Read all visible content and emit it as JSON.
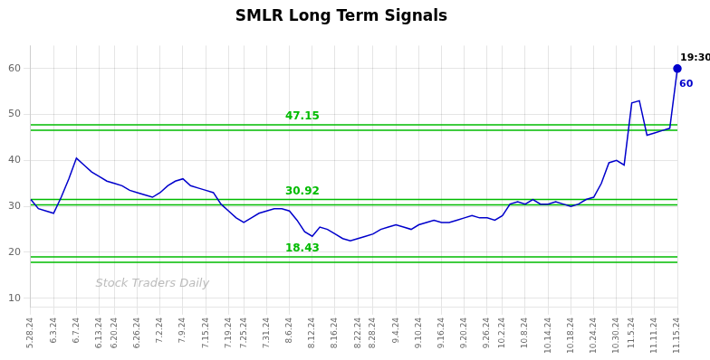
{
  "chart_data": {
    "type": "line",
    "title": "SMLR Long Term Signals",
    "categories": [
      "5.28.24",
      null,
      null,
      "6.3.24",
      null,
      null,
      "6.7.24",
      null,
      null,
      "6.13.24",
      null,
      "6.20.24",
      null,
      null,
      "6.26.24",
      null,
      null,
      "7.2.24",
      null,
      null,
      "7.9.24",
      null,
      null,
      "7.15.24",
      null,
      null,
      "7.19.24",
      null,
      "7.25.24",
      null,
      null,
      "7.31.24",
      null,
      null,
      "8.6.24",
      null,
      null,
      "8.12.24",
      null,
      null,
      "8.16.24",
      null,
      null,
      "8.22.24",
      null,
      "8.28.24",
      null,
      null,
      "9.4.24",
      null,
      null,
      "9.10.24",
      null,
      null,
      "9.16.24",
      null,
      null,
      "9.20.24",
      null,
      null,
      "9.26.24",
      null,
      "10.2.24",
      null,
      null,
      "10.8.24",
      null,
      null,
      "10.14.24",
      null,
      null,
      "10.18.24",
      null,
      null,
      "10.24.24",
      null,
      null,
      "10.30.24",
      null,
      "11.5.24",
      null,
      null,
      "11.11.24",
      null,
      null,
      "11.15.24"
    ],
    "values": [
      31.5,
      29.5,
      29.0,
      28.5,
      32.0,
      36.0,
      40.5,
      39.0,
      37.5,
      36.5,
      35.5,
      35.0,
      34.5,
      33.5,
      33.0,
      32.5,
      32.0,
      33.0,
      34.5,
      35.5,
      36.0,
      34.5,
      34.0,
      33.5,
      33.0,
      30.5,
      29.0,
      27.5,
      26.5,
      27.5,
      28.5,
      29.0,
      29.5,
      29.5,
      29.0,
      27.0,
      24.5,
      23.5,
      25.5,
      25.0,
      24.0,
      23.0,
      22.5,
      23.0,
      23.5,
      24.0,
      25.0,
      25.5,
      26.0,
      25.5,
      25.0,
      26.0,
      26.5,
      27.0,
      26.5,
      26.5,
      27.0,
      27.5,
      28.0,
      27.5,
      27.5,
      27.0,
      28.0,
      30.5,
      31.0,
      30.5,
      31.5,
      30.5,
      30.5,
      31.0,
      30.5,
      30.0,
      30.5,
      31.5,
      32.0,
      35.0,
      39.5,
      40.0,
      39.0,
      52.5,
      53.0,
      45.5,
      46.0,
      46.5,
      47.0,
      60.0
    ],
    "color": "#0000cc",
    "ylim": [
      8,
      65
    ],
    "yticks": [
      10,
      20,
      30,
      40,
      50,
      60
    ],
    "grid": true,
    "hlines": [
      {
        "value": 47.15,
        "label": "47.15",
        "color": "#00bb00",
        "band": [
          46.55,
          47.75
        ]
      },
      {
        "value": 30.92,
        "label": "30.92",
        "color": "#00bb00",
        "band": [
          30.32,
          31.52
        ]
      },
      {
        "value": 18.43,
        "label": "18.43",
        "color": "#00bb00",
        "band": [
          17.83,
          19.03
        ]
      }
    ],
    "annotations": [
      {
        "text": "19:30",
        "color": "#000000"
      },
      {
        "text": "60",
        "color": "#0000cc"
      }
    ],
    "watermark": {
      "text": "Stock Traders Daily",
      "color": "#b0b0b0"
    }
  }
}
